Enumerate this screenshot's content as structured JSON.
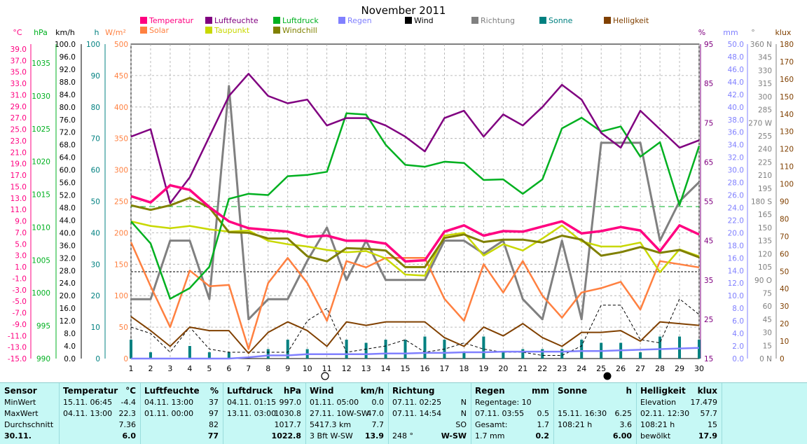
{
  "title": "November 2011",
  "colors": {
    "Temperatur": "#ff0080",
    "Luftfeuchte": "#800080",
    "Luftdruck": "#00b020",
    "Regen": "#8080ff",
    "Wind": "#000000",
    "Richtung": "#808080",
    "Sonne": "#008080",
    "Helligkeit": "#804000",
    "Solar": "#ff8040",
    "Taupunkt": "#c8d800",
    "Windchill": "#808000"
  },
  "legend": [
    {
      "label": "Temperatur",
      "key": "Temperatur"
    },
    {
      "label": "Solar",
      "key": "Solar"
    },
    {
      "label": "Luftfeuchte",
      "key": "Luftfeuchte"
    },
    {
      "label": "Taupunkt",
      "key": "Taupunkt"
    },
    {
      "label": "Luftdruck",
      "key": "Luftdruck"
    },
    {
      "label": "Windchill",
      "key": "Windchill"
    },
    {
      "label": "Regen",
      "key": "Regen"
    },
    {
      "label": "Wind",
      "key": "Wind"
    },
    {
      "label": "Richtung",
      "key": "Richtung"
    },
    {
      "label": "Sonne",
      "key": "Sonne"
    },
    {
      "label": "Helligkeit",
      "key": "Helligkeit"
    }
  ],
  "axes": {
    "temp": {
      "unit": "°C",
      "color": "#ff0080",
      "ticks": [
        "39.0",
        "37.0",
        "35.0",
        "33.0",
        "31.0",
        "29.0",
        "27.0",
        "25.0",
        "23.0",
        "21.0",
        "19.0",
        "17.0",
        "15.0",
        "13.0",
        "11.0",
        "9.0",
        "7.0",
        "5.0",
        "3.0",
        "1.0",
        "-1.0",
        "-3.0",
        "-5.0",
        "-7.0",
        "-9.0",
        "-11.0",
        "-13.0",
        "-15.0"
      ]
    },
    "hpa": {
      "unit": "hPa",
      "color": "#00b020",
      "ticks": [
        "1035",
        "1030",
        "1025",
        "1020",
        "1015",
        "1010",
        "1005",
        "1000",
        "995",
        "990"
      ]
    },
    "kmh": {
      "unit": "km/h",
      "color": "#000000",
      "ticks": [
        "100.0",
        "96.0",
        "92.0",
        "88.0",
        "84.0",
        "80.0",
        "76.0",
        "72.0",
        "68.0",
        "64.0",
        "60.0",
        "56.0",
        "52.0",
        "48.0",
        "44.0",
        "40.0",
        "36.0",
        "32.0",
        "28.0",
        "24.0",
        "20.0",
        "16.0",
        "12.0",
        "8.0",
        "4.0",
        "0.0"
      ]
    },
    "h": {
      "unit": "h",
      "color": "#008080",
      "ticks": [
        "100",
        "90",
        "80",
        "70",
        "60",
        "50",
        "40",
        "30",
        "20",
        "10",
        "0"
      ]
    },
    "wm2": {
      "unit": "W/m²",
      "color": "#ff8040",
      "ticks": [
        "500",
        "450",
        "400",
        "350",
        "300",
        "250",
        "200",
        "150",
        "100",
        "50",
        "0"
      ]
    },
    "pct": {
      "unit": "%",
      "color": "#800080",
      "ticks": [
        "95",
        "85",
        "75",
        "65",
        "55",
        "45",
        "35",
        "25",
        "15"
      ]
    },
    "mm": {
      "unit": "mm",
      "color": "#8080ff",
      "ticks": [
        "50.0",
        "48.0",
        "46.0",
        "44.0",
        "42.0",
        "40.0",
        "38.0",
        "36.0",
        "34.0",
        "32.0",
        "30.0",
        "28.0",
        "26.0",
        "24.0",
        "22.0",
        "20.0",
        "18.0",
        "16.0",
        "14.0",
        "12.0",
        "10.0",
        "8.0",
        "6.0",
        "4.0",
        "2.0",
        "0.0"
      ]
    },
    "deg": {
      "unit": "°",
      "color": "#808080",
      "ticks": [
        "360 N",
        "345",
        "330",
        "315",
        "300",
        "285",
        "270 W",
        "255",
        "240",
        "225",
        "210",
        "195",
        "180 S",
        "165",
        "150",
        "135",
        "120",
        "105",
        "90 O",
        "75",
        "60",
        "45",
        "30",
        "15",
        "0 N"
      ]
    },
    "klux": {
      "unit": "klux",
      "color": "#804000",
      "ticks": [
        "180",
        "170",
        "160",
        "150",
        "140",
        "130",
        "120",
        "110",
        "100",
        "90",
        "80",
        "70",
        "60",
        "50",
        "40",
        "30",
        "20",
        "10",
        "0"
      ]
    }
  },
  "chart_data": {
    "type": "line",
    "title": "November 2011",
    "x": [
      1,
      2,
      3,
      4,
      5,
      6,
      7,
      8,
      9,
      10,
      11,
      12,
      13,
      14,
      15,
      16,
      17,
      18,
      19,
      20,
      21,
      22,
      23,
      24,
      25,
      26,
      27,
      28,
      29,
      30
    ],
    "xlim": [
      1,
      30
    ],
    "grid": true,
    "series": [
      {
        "name": "Temperatur",
        "unit": "°C",
        "axis": "temp",
        "ylim": [
          -15,
          40
        ],
        "values": [
          13.4,
          12.3,
          15.3,
          14.5,
          11.5,
          9.0,
          7.8,
          7.5,
          7.2,
          6.3,
          6.5,
          5.6,
          5.6,
          5.1,
          2.0,
          2.2,
          7.2,
          8.3,
          6.5,
          7.3,
          7.2,
          8.1,
          9.0,
          6.9,
          7.3,
          8.0,
          7.4,
          3.8,
          8.3,
          6.7
        ]
      },
      {
        "name": "Solar",
        "unit": "W/m²",
        "axis": "wm2",
        "ylim": [
          0,
          500
        ],
        "values": [
          185,
          115,
          50,
          140,
          115,
          117,
          15,
          120,
          160,
          120,
          60,
          155,
          145,
          160,
          160,
          160,
          95,
          60,
          150,
          105,
          155,
          100,
          65,
          105,
          112,
          122,
          78,
          155,
          150,
          145
        ]
      },
      {
        "name": "Luftfeuchte",
        "unit": "%",
        "axis": "pct",
        "ylim": [
          15,
          100
        ],
        "values": [
          75,
          77,
          57,
          64,
          75,
          86,
          92,
          86,
          84,
          85,
          78,
          80,
          80,
          78,
          75,
          71,
          80,
          82,
          75,
          81,
          78,
          83,
          89,
          85,
          76,
          72,
          82,
          77,
          72,
          74
        ]
      },
      {
        "name": "Taupunkt",
        "unit": "°C",
        "axis": "temp",
        "ylim": [
          -15,
          40
        ],
        "values": [
          9.0,
          8.2,
          7.8,
          8.2,
          7.6,
          7.2,
          7.4,
          5.6,
          5.0,
          4.6,
          4.0,
          3.6,
          3.8,
          2.5,
          -0.3,
          -0.5,
          6.5,
          7.0,
          3.0,
          5.0,
          3.9,
          6.0,
          8.3,
          5.5,
          4.6,
          4.6,
          5.3,
          0.1,
          4.1,
          2.9
        ]
      },
      {
        "name": "Luftdruck",
        "unit": "hPa",
        "axis": "hpa",
        "ylim": [
          990,
          1040
        ],
        "values": [
          1011.8,
          1008.3,
          999.5,
          1001.2,
          1004.6,
          1015.4,
          1016.2,
          1016.0,
          1019.0,
          1019.2,
          1019.7,
          1029.0,
          1028.8,
          1024.0,
          1020.8,
          1020.5,
          1021.3,
          1021.1,
          1018.4,
          1018.5,
          1016.2,
          1018.5,
          1026.6,
          1028.3,
          1026.1,
          1026.9,
          1022.1,
          1024.4,
          1014.4,
          1023.8
        ]
      },
      {
        "name": "Windchill",
        "unit": "°C",
        "axis": "temp",
        "ylim": [
          -15,
          40
        ],
        "values": [
          11.8,
          11.0,
          11.8,
          13.1,
          11.4,
          7.1,
          7.0,
          6.0,
          6.0,
          2.9,
          2.0,
          4.3,
          4.2,
          3.9,
          1.0,
          1.0,
          6.1,
          6.7,
          5.4,
          5.8,
          5.8,
          5.3,
          6.5,
          5.8,
          3.0,
          3.6,
          4.5,
          3.5,
          4.0,
          2.7
        ]
      },
      {
        "name": "Regen",
        "unit": "mm",
        "axis": "mm",
        "ylim": [
          0,
          50
        ],
        "values": [
          0.0,
          0.0,
          0.0,
          0.0,
          0.0,
          0.0,
          0.2,
          0.5,
          0.5,
          0.7,
          0.7,
          0.7,
          0.7,
          0.8,
          0.8,
          0.9,
          0.9,
          1.0,
          1.0,
          1.1,
          1.1,
          1.1,
          1.1,
          1.2,
          1.2,
          1.3,
          1.4,
          1.5,
          1.6,
          1.7
        ]
      },
      {
        "name": "Wind",
        "unit": "km/h",
        "axis": "kmh",
        "ylim": [
          0,
          100
        ],
        "values": [
          10,
          8,
          2,
          10,
          3,
          2,
          2,
          2,
          2,
          12,
          16,
          2,
          3,
          4,
          6,
          2,
          3,
          5,
          3,
          2,
          2,
          1,
          1,
          4,
          17,
          17,
          6,
          5,
          19,
          14
        ]
      },
      {
        "name": "Richtung",
        "unit": "°",
        "axis": "deg",
        "ylim": [
          0,
          360
        ],
        "values": [
          68,
          68,
          135,
          135,
          68,
          312,
          45,
          68,
          68,
          112,
          150,
          90,
          135,
          90,
          90,
          90,
          135,
          135,
          120,
          135,
          68,
          45,
          135,
          45,
          247,
          247,
          247,
          135,
          180,
          202
        ]
      },
      {
        "name": "Sonne",
        "unit": "h",
        "axis": "h",
        "ylim": [
          0,
          100
        ],
        "values": [
          6,
          2,
          0,
          4,
          2,
          2,
          0,
          3,
          6,
          3,
          0,
          6,
          5,
          6,
          6,
          7,
          6,
          2,
          7,
          2,
          3,
          3,
          3,
          6,
          5,
          5,
          2,
          7,
          7,
          6
        ]
      },
      {
        "name": "Helligkeit",
        "unit": "klux",
        "axis": "klux",
        "ylim": [
          0,
          180
        ],
        "values": [
          24,
          16,
          7,
          18,
          16,
          16,
          3,
          15,
          21,
          16,
          7,
          21,
          19,
          21,
          21,
          21,
          12,
          7,
          18,
          13,
          20,
          12,
          7,
          15,
          15,
          16,
          10,
          21,
          20,
          19
        ]
      }
    ]
  },
  "stats": {
    "rows": [
      "MinWert",
      "MaxWert",
      "Durchschnitt",
      "30.11."
    ],
    "sensor_label": "Sensor",
    "temperatur": {
      "title": "Temperatur",
      "unit": "°C",
      "rows": [
        [
          "15.11. 06:45",
          "-4.4"
        ],
        [
          "04.11. 13:00",
          "22.3"
        ],
        [
          "",
          "7.36"
        ],
        [
          "",
          "6.0"
        ]
      ]
    },
    "luftfeuchte": {
      "title": "Luftfeuchte",
      "unit": "%",
      "rows": [
        [
          "04.11. 13:00",
          "37"
        ],
        [
          "01.11. 00:00",
          "97"
        ],
        [
          "",
          "82"
        ],
        [
          "",
          "77"
        ]
      ]
    },
    "luftdruck": {
      "title": "Luftdruck",
      "unit": "hPa",
      "rows": [
        [
          "04.11. 01:15",
          "997.0"
        ],
        [
          "13.11. 03:00",
          "1030.8"
        ],
        [
          "",
          "1017.7"
        ],
        [
          "",
          "1022.8"
        ]
      ]
    },
    "wind": {
      "title": "Wind",
      "unit": "km/h",
      "rows": [
        [
          "01.11. 05:00",
          "0.0"
        ],
        [
          "27.11. 10W-SW",
          "47.0"
        ],
        [
          "5417.3 km",
          "7.7"
        ],
        [
          "3 Bft W-SW",
          "13.9"
        ]
      ]
    },
    "richtung": {
      "title": "Richtung",
      "unit": "",
      "rows": [
        [
          "07.11. 02:25",
          "N"
        ],
        [
          "07.11. 14:54",
          "N"
        ],
        [
          "",
          "SO"
        ],
        [
          "248 °",
          "W-SW"
        ]
      ]
    },
    "regen": {
      "title": "Regen",
      "unit": "mm",
      "rows": [
        [
          "Regentage: 10",
          ""
        ],
        [
          "07.11. 03:55",
          "0.5"
        ],
        [
          "Gesamt:",
          "1.7"
        ],
        [
          "1.7 mm",
          "0.2"
        ]
      ]
    },
    "sonne": {
      "title": "Sonne",
      "unit": "h",
      "rows": [
        [
          "",
          ""
        ],
        [
          "15.11. 16:30",
          "6.25"
        ],
        [
          "108:21 h",
          "3.6"
        ],
        [
          "",
          "6.00"
        ]
      ]
    },
    "helligkeit": {
      "title": "Helligkeit",
      "unit": "klux",
      "rows": [
        [
          "Elevation",
          "17.479"
        ],
        [
          "02.11. 12:30",
          "57.7"
        ],
        [
          "108:21 h",
          "15"
        ],
        [
          "bewölkt",
          "17.9"
        ]
      ]
    }
  }
}
